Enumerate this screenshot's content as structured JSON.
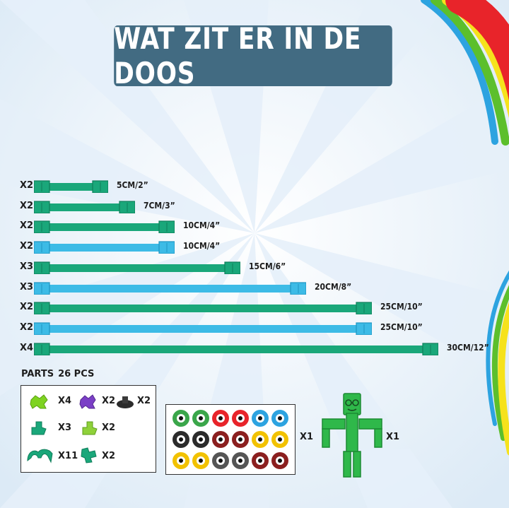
{
  "title": "WAT ZIT ER IN DE DOOS",
  "colors": {
    "title_bg": "#426b82",
    "green_rod": "#1aa77a",
    "blue_rod": "#3dbbe6",
    "accent_red": "#e8242a",
    "accent_yellow": "#f6e21c",
    "accent_green": "#5cbf2c",
    "accent_blue": "#2da3e0"
  },
  "rods": [
    {
      "qty": "X2",
      "size": "5CM/2”",
      "color": "green",
      "length_cm": 5
    },
    {
      "qty": "X2",
      "size": "7CM/3”",
      "color": "green",
      "length_cm": 7
    },
    {
      "qty": "X2",
      "size": "10CM/4”",
      "color": "green",
      "length_cm": 10
    },
    {
      "qty": "X2",
      "size": "10CM/4”",
      "color": "blue",
      "length_cm": 10
    },
    {
      "qty": "X3",
      "size": "15CM/6”",
      "color": "green",
      "length_cm": 15
    },
    {
      "qty": "X3",
      "size": "20CM/8”",
      "color": "blue",
      "length_cm": 20
    },
    {
      "qty": "X2",
      "size": "25CM/10”",
      "color": "green",
      "length_cm": 25
    },
    {
      "qty": "X2",
      "size": "25CM/10”",
      "color": "blue",
      "length_cm": 25
    },
    {
      "qty": "X4",
      "size": "30CM/12”",
      "color": "green",
      "length_cm": 30
    }
  ],
  "parts": {
    "label": "PARTS",
    "count": "26 PCS",
    "items": [
      {
        "name": "green-connector-4way",
        "qty": "X4"
      },
      {
        "name": "purple-connector-4way",
        "qty": "X2"
      },
      {
        "name": "black-base",
        "qty": "X2"
      },
      {
        "name": "teal-connector-corner",
        "qty": "X3"
      },
      {
        "name": "lime-connector-corner",
        "qty": "X2"
      },
      {
        "name": "teal-claw-clip",
        "qty": "X11"
      },
      {
        "name": "teal-connector-hinge",
        "qty": "X2"
      }
    ]
  },
  "stickers": {
    "qty": "X1"
  },
  "robot": {
    "qty": "X1"
  }
}
